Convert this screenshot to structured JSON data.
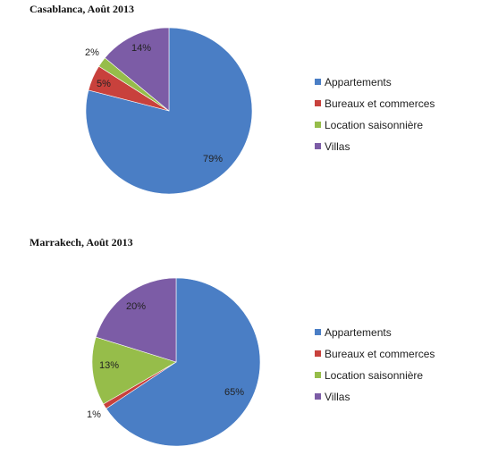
{
  "chart_data": [
    {
      "type": "pie",
      "title": "Casablanca, Août 2013",
      "categories": [
        "Appartements",
        "Bureaux et commerces",
        "Location saisonnière",
        "Villas"
      ],
      "values": [
        79,
        5,
        2,
        14
      ],
      "labels": [
        "79%",
        "5%",
        "2%",
        "14%"
      ],
      "colors": [
        "#4a7ec5",
        "#c8413c",
        "#96bd4a",
        "#7c5ca6"
      ],
      "legend": "right"
    },
    {
      "type": "pie",
      "title": "Marrakech, Août 2013",
      "categories": [
        "Appartements",
        "Bureaux et commerces",
        "Location saisonnière",
        "Villas"
      ],
      "values": [
        65,
        1,
        13,
        20
      ],
      "labels": [
        "65%",
        "1%",
        "13%",
        "20%"
      ],
      "colors": [
        "#4a7ec5",
        "#c8413c",
        "#96bd4a",
        "#7c5ca6"
      ],
      "legend": "right"
    }
  ]
}
